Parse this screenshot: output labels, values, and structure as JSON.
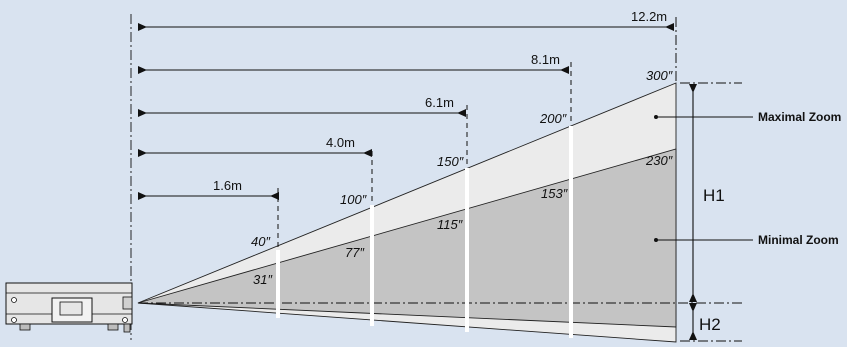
{
  "colors": {
    "background": "#d9e3f0",
    "max_zoom_cone": "#ebebeb",
    "min_zoom_cone": "#c4c4c4",
    "projector_body": "#e6e6e6",
    "line": "#111111",
    "dash_white": "#ffffff"
  },
  "distances": [
    {
      "label": "1.6m"
    },
    {
      "label": "4.0m"
    },
    {
      "label": "6.1m"
    },
    {
      "label": "8.1m"
    },
    {
      "label": "12.2m"
    }
  ],
  "max_sizes": [
    {
      "label": "40″"
    },
    {
      "label": "100″"
    },
    {
      "label": "150″"
    },
    {
      "label": "200″"
    },
    {
      "label": "300″"
    }
  ],
  "min_sizes": [
    {
      "label": "31″"
    },
    {
      "label": "77″"
    },
    {
      "label": "115″"
    },
    {
      "label": "153″"
    },
    {
      "label": "230″"
    }
  ],
  "zoom_labels": {
    "maximal": "Maximal Zoom",
    "minimal": "Minimal Zoom"
  },
  "height_labels": {
    "h1": "H1",
    "h2": "H2"
  },
  "icons": {
    "projector": "projector-icon"
  }
}
